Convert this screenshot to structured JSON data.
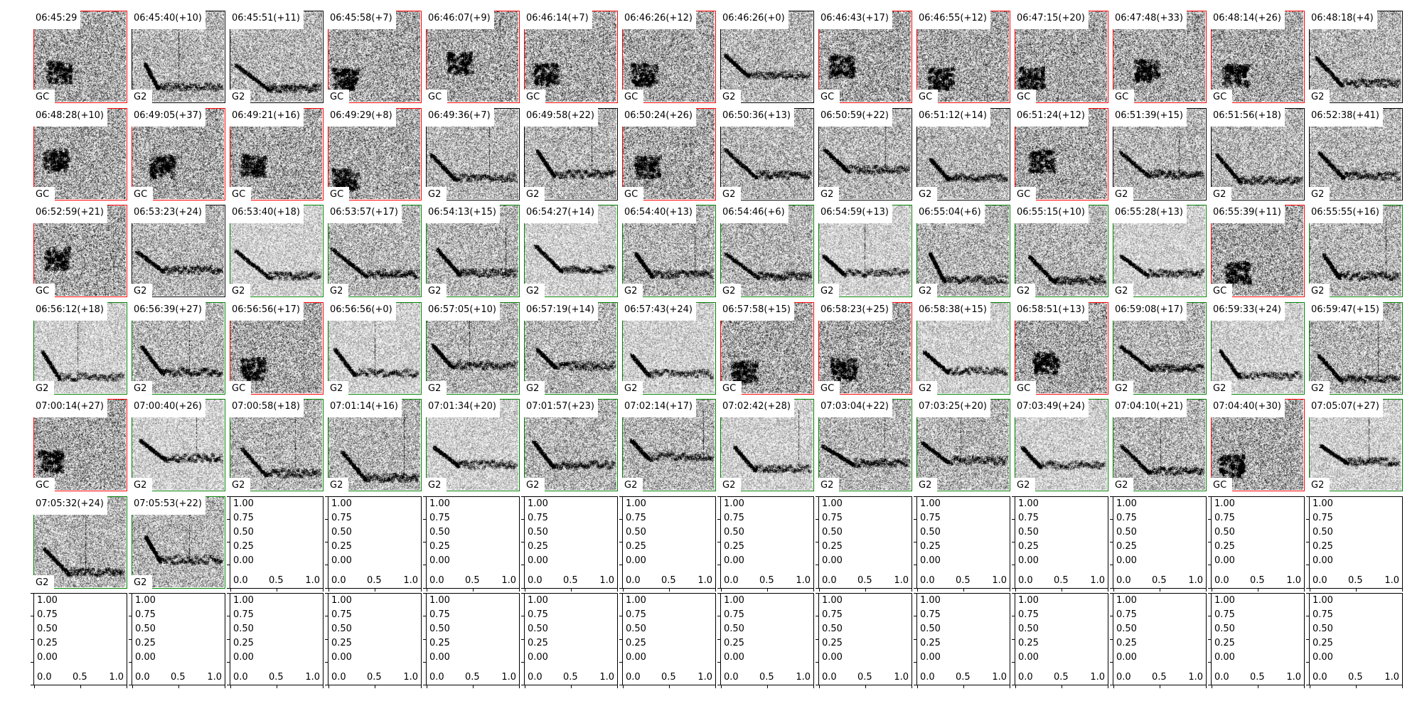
{
  "chart_data": {
    "type": "spectrogram-grid",
    "grid": {
      "rows": 7,
      "cols": 14
    },
    "class_colors": {
      "GC": "#ff0000",
      "G2_early": "#000000",
      "G2": "#008000"
    },
    "panels": [
      {
        "title": "06:45:29",
        "label": "GC",
        "color": "#ff0000"
      },
      {
        "title": "06:45:40(+10)",
        "label": "G2",
        "color": "#000000"
      },
      {
        "title": "06:45:51(+11)",
        "label": "G2",
        "color": "#000000"
      },
      {
        "title": "06:45:58(+7)",
        "label": "GC",
        "color": "#ff0000"
      },
      {
        "title": "06:46:07(+9)",
        "label": "GC",
        "color": "#ff0000"
      },
      {
        "title": "06:46:14(+7)",
        "label": "GC",
        "color": "#ff0000"
      },
      {
        "title": "06:46:26(+12)",
        "label": "GC",
        "color": "#ff0000"
      },
      {
        "title": "06:46:26(+0)",
        "label": "G2",
        "color": "#000000"
      },
      {
        "title": "06:46:43(+17)",
        "label": "GC",
        "color": "#ff0000"
      },
      {
        "title": "06:46:55(+12)",
        "label": "GC",
        "color": "#ff0000"
      },
      {
        "title": "06:47:15(+20)",
        "label": "GC",
        "color": "#ff0000"
      },
      {
        "title": "06:47:48(+33)",
        "label": "GC",
        "color": "#ff0000"
      },
      {
        "title": "06:48:14(+26)",
        "label": "GC",
        "color": "#ff0000"
      },
      {
        "title": "06:48:18(+4)",
        "label": "G2",
        "color": "#000000"
      },
      {
        "title": "06:48:28(+10)",
        "label": "GC",
        "color": "#ff0000"
      },
      {
        "title": "06:49:05(+37)",
        "label": "GC",
        "color": "#ff0000"
      },
      {
        "title": "06:49:21(+16)",
        "label": "GC",
        "color": "#ff0000"
      },
      {
        "title": "06:49:29(+8)",
        "label": "GC",
        "color": "#ff0000"
      },
      {
        "title": "06:49:36(+7)",
        "label": "G2",
        "color": "#000000"
      },
      {
        "title": "06:49:58(+22)",
        "label": "G2",
        "color": "#000000"
      },
      {
        "title": "06:50:24(+26)",
        "label": "GC",
        "color": "#ff0000"
      },
      {
        "title": "06:50:36(+13)",
        "label": "G2",
        "color": "#000000"
      },
      {
        "title": "06:50:59(+22)",
        "label": "G2",
        "color": "#000000"
      },
      {
        "title": "06:51:12(+14)",
        "label": "G2",
        "color": "#000000"
      },
      {
        "title": "06:51:24(+12)",
        "label": "GC",
        "color": "#ff0000"
      },
      {
        "title": "06:51:39(+15)",
        "label": "G2",
        "color": "#000000"
      },
      {
        "title": "06:51:56(+18)",
        "label": "G2",
        "color": "#000000"
      },
      {
        "title": "06:52:38(+41)",
        "label": "G2",
        "color": "#000000"
      },
      {
        "title": "06:52:59(+21)",
        "label": "GC",
        "color": "#ff0000"
      },
      {
        "title": "06:53:23(+24)",
        "label": "G2",
        "color": "#000000"
      },
      {
        "title": "06:53:40(+18)",
        "label": "G2",
        "color": "#008000"
      },
      {
        "title": "06:53:57(+17)",
        "label": "G2",
        "color": "#008000"
      },
      {
        "title": "06:54:13(+15)",
        "label": "G2",
        "color": "#008000"
      },
      {
        "title": "06:54:27(+14)",
        "label": "G2",
        "color": "#008000"
      },
      {
        "title": "06:54:40(+13)",
        "label": "G2",
        "color": "#008000"
      },
      {
        "title": "06:54:46(+6)",
        "label": "G2",
        "color": "#008000"
      },
      {
        "title": "06:54:59(+13)",
        "label": "G2",
        "color": "#008000"
      },
      {
        "title": "06:55:04(+6)",
        "label": "G2",
        "color": "#008000"
      },
      {
        "title": "06:55:15(+10)",
        "label": "G2",
        "color": "#008000"
      },
      {
        "title": "06:55:28(+13)",
        "label": "G2",
        "color": "#008000"
      },
      {
        "title": "06:55:39(+11)",
        "label": "GC",
        "color": "#ff0000"
      },
      {
        "title": "06:55:55(+16)",
        "label": "G2",
        "color": "#008000"
      },
      {
        "title": "06:56:12(+18)",
        "label": "G2",
        "color": "#008000"
      },
      {
        "title": "06:56:39(+27)",
        "label": "G2",
        "color": "#008000"
      },
      {
        "title": "06:56:56(+17)",
        "label": "GC",
        "color": "#ff0000"
      },
      {
        "title": "06:56:56(+0)",
        "label": "G2",
        "color": "#008000"
      },
      {
        "title": "06:57:05(+10)",
        "label": "G2",
        "color": "#008000"
      },
      {
        "title": "06:57:19(+14)",
        "label": "G2",
        "color": "#008000"
      },
      {
        "title": "06:57:43(+24)",
        "label": "G2",
        "color": "#008000"
      },
      {
        "title": "06:57:58(+15)",
        "label": "GC",
        "color": "#ff0000"
      },
      {
        "title": "06:58:23(+25)",
        "label": "GC",
        "color": "#ff0000"
      },
      {
        "title": "06:58:38(+15)",
        "label": "G2",
        "color": "#008000"
      },
      {
        "title": "06:58:51(+13)",
        "label": "GC",
        "color": "#ff0000"
      },
      {
        "title": "06:59:08(+17)",
        "label": "G2",
        "color": "#008000"
      },
      {
        "title": "06:59:33(+24)",
        "label": "G2",
        "color": "#008000"
      },
      {
        "title": "06:59:47(+15)",
        "label": "G2",
        "color": "#008000"
      },
      {
        "title": "07:00:14(+27)",
        "label": "GC",
        "color": "#ff0000"
      },
      {
        "title": "07:00:40(+26)",
        "label": "G2",
        "color": "#008000"
      },
      {
        "title": "07:00:58(+18)",
        "label": "G2",
        "color": "#008000"
      },
      {
        "title": "07:01:14(+16)",
        "label": "G2",
        "color": "#008000"
      },
      {
        "title": "07:01:34(+20)",
        "label": "G2",
        "color": "#008000"
      },
      {
        "title": "07:01:57(+23)",
        "label": "G2",
        "color": "#008000"
      },
      {
        "title": "07:02:14(+17)",
        "label": "G2",
        "color": "#008000"
      },
      {
        "title": "07:02:42(+28)",
        "label": "G2",
        "color": "#008000"
      },
      {
        "title": "07:03:04(+22)",
        "label": "G2",
        "color": "#008000"
      },
      {
        "title": "07:03:25(+20)",
        "label": "G2",
        "color": "#008000"
      },
      {
        "title": "07:03:49(+24)",
        "label": "G2",
        "color": "#008000"
      },
      {
        "title": "07:04:10(+21)",
        "label": "G2",
        "color": "#008000"
      },
      {
        "title": "07:04:40(+30)",
        "label": "GC",
        "color": "#ff0000"
      },
      {
        "title": "07:05:07(+27)",
        "label": "G2",
        "color": "#008000"
      },
      {
        "title": "07:05:32(+24)",
        "label": "G2",
        "color": "#008000"
      },
      {
        "title": "07:05:53(+22)",
        "label": "G2",
        "color": "#008000"
      }
    ],
    "empty_axes": {
      "count": 26,
      "xlim": [
        0,
        1
      ],
      "ylim": [
        0,
        1
      ],
      "xticks": [
        "0.0",
        "0.5",
        "1.0"
      ],
      "yticks": [
        "0.00",
        "0.25",
        "0.50",
        "0.75",
        "1.00"
      ]
    }
  }
}
